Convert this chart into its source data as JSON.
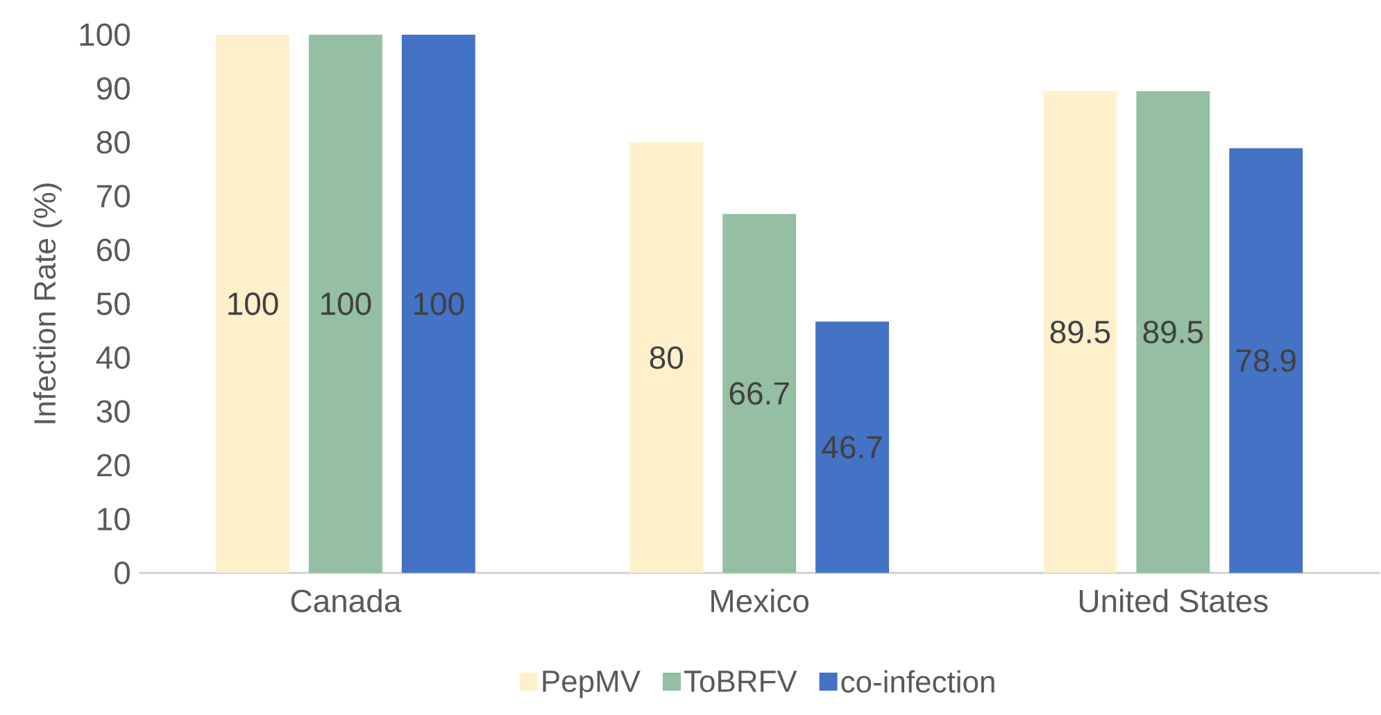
{
  "chart_data": {
    "type": "bar",
    "ylabel": "Infection Rate (%)",
    "categories": [
      "Canada",
      "Mexico",
      "United States"
    ],
    "series": [
      {
        "name": "PepMV",
        "color": "#fff0cc",
        "values": [
          100,
          80,
          89.5
        ]
      },
      {
        "name": "ToBRFV",
        "color": "#94bfa2",
        "values": [
          100,
          66.7,
          89.5
        ]
      },
      {
        "name": "co-infection",
        "color": "#4472c4",
        "values": [
          100,
          46.7,
          78.9
        ]
      }
    ],
    "ylim": [
      0,
      100
    ],
    "yticks": [
      0,
      10,
      20,
      30,
      40,
      50,
      60,
      70,
      80,
      90,
      100
    ],
    "data_labels": true,
    "grid": false,
    "legend": "bottom"
  }
}
